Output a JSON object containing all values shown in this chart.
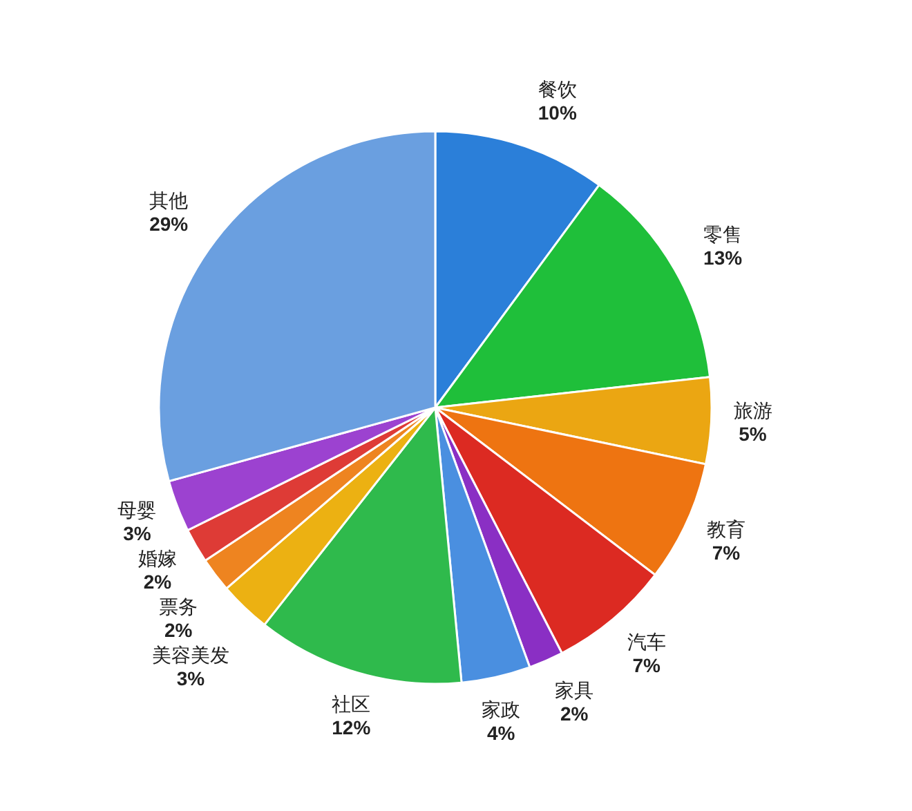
{
  "chart_data": {
    "type": "pie",
    "categories": [
      "餐饮",
      "零售",
      "旅游",
      "教育",
      "汽车",
      "家具",
      "家政",
      "社区",
      "美容美发",
      "票务",
      "婚嫁",
      "母婴",
      "其他"
    ],
    "values": [
      10,
      13,
      5,
      7,
      7,
      2,
      4,
      12,
      3,
      2,
      2,
      3,
      29
    ],
    "value_labels": [
      "10%",
      "13%",
      "5%",
      "7%",
      "7%",
      "2%",
      "4%",
      "12%",
      "3%",
      "2%",
      "2%",
      "3%",
      "29%"
    ],
    "colors": [
      "#2b7fd9",
      "#1fbf3a",
      "#eba612",
      "#ee7411",
      "#dc2a22",
      "#8a2fc4",
      "#4a8fe0",
      "#2fba4c",
      "#ecb112",
      "#ee8420",
      "#de3b36",
      "#9c42d0",
      "#6a9fe0"
    ]
  }
}
